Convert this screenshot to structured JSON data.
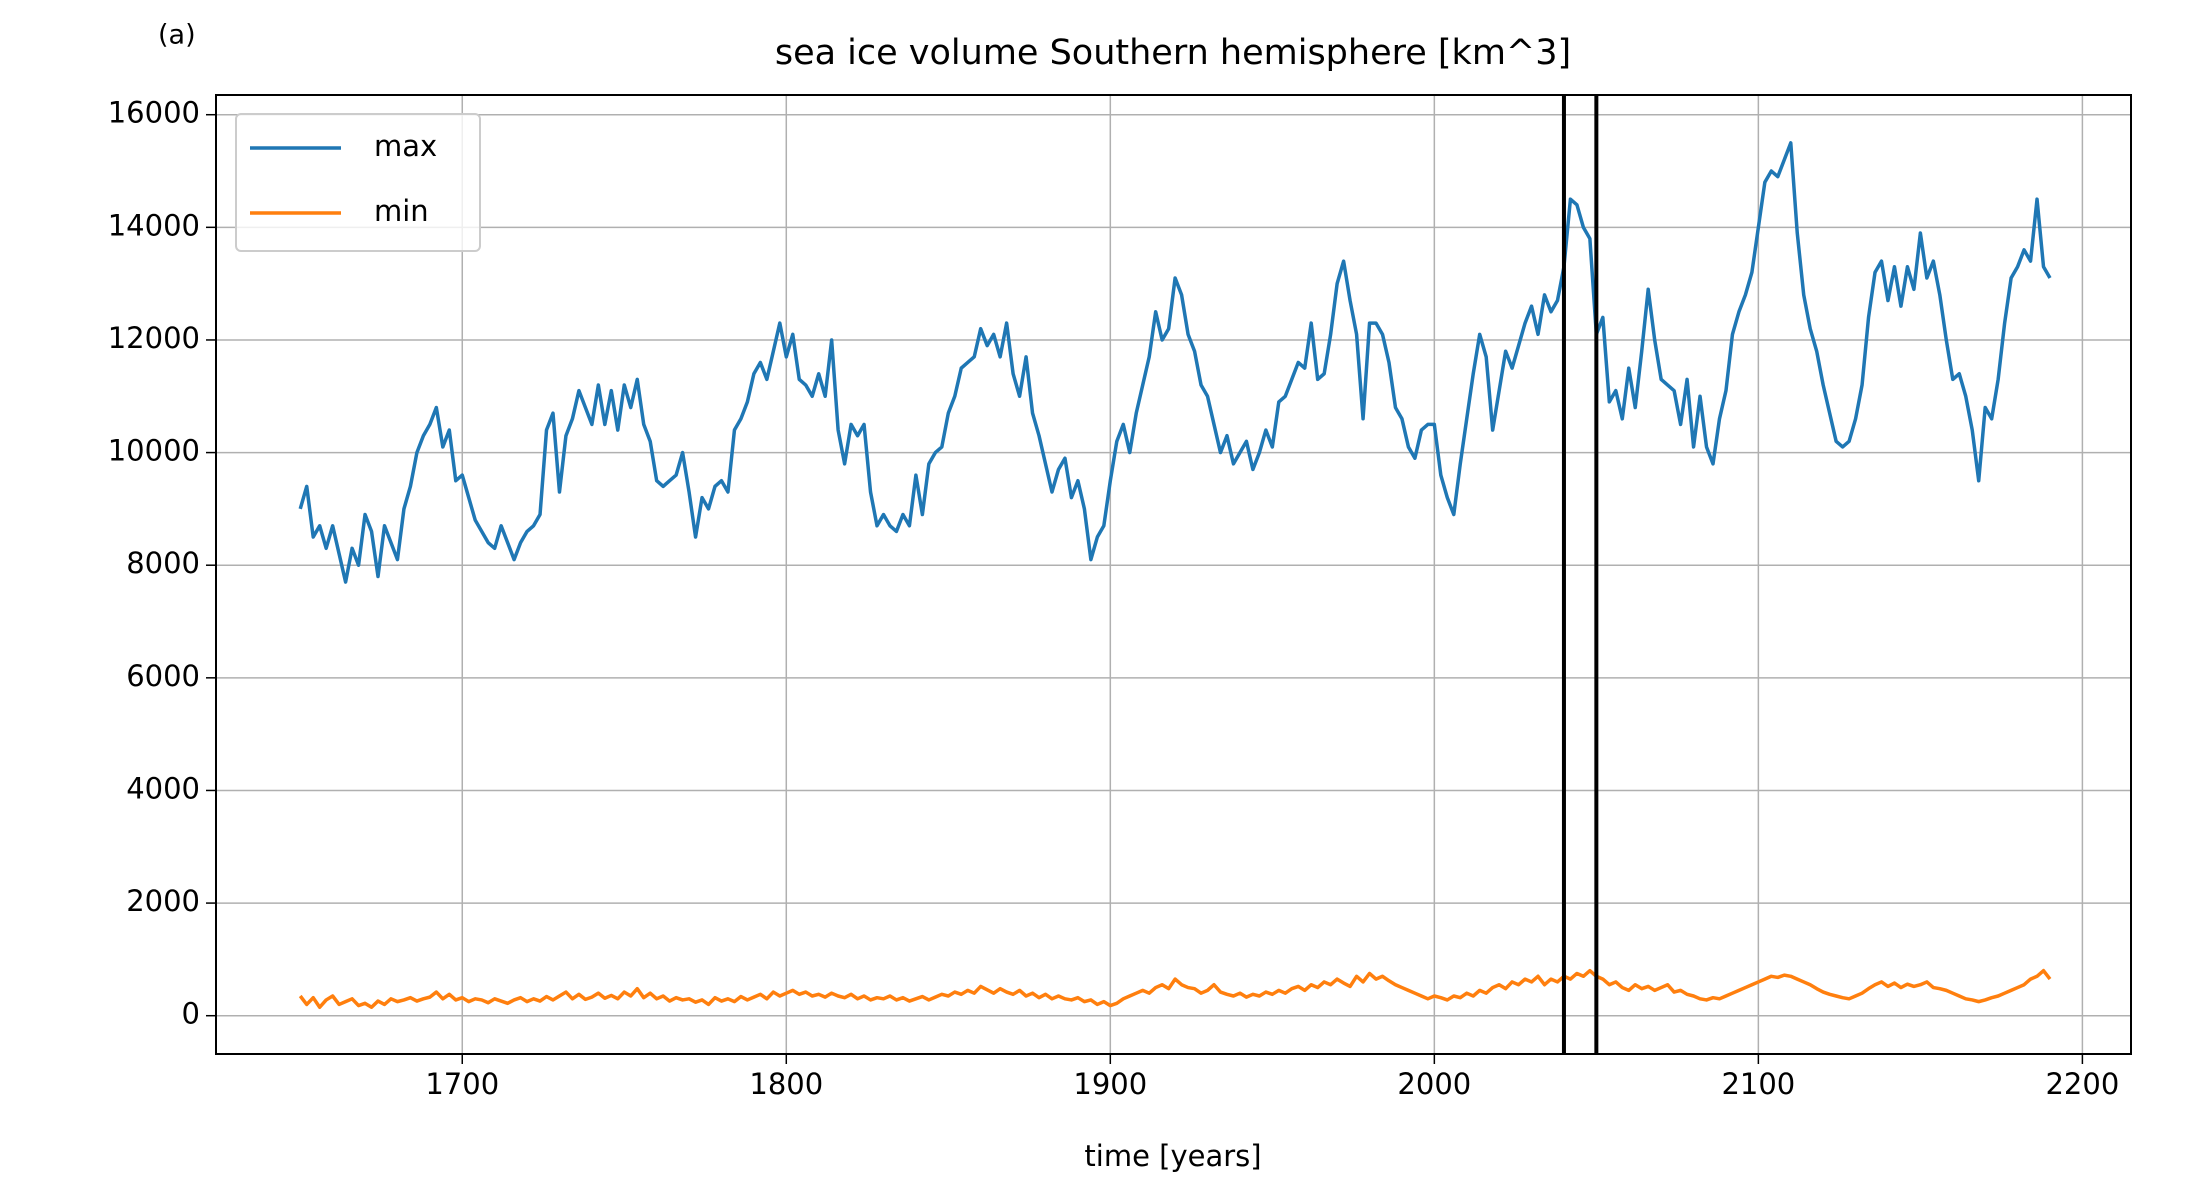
{
  "chart_data": {
    "type": "line",
    "panel_label": "(a)",
    "title": "sea ice volume Southern hemisphere [km^3]",
    "xlabel": "time [years]",
    "xlim": [
      1624,
      2215
    ],
    "ylim": [
      -680,
      16350
    ],
    "xticks": [
      1700,
      1800,
      1900,
      2000,
      2100,
      2200
    ],
    "yticks": [
      0,
      2000,
      4000,
      6000,
      8000,
      10000,
      12000,
      14000,
      16000
    ],
    "grid": true,
    "legend": "upper left",
    "vlines": [
      2040,
      2050
    ],
    "vline_color": "#000000",
    "x": [
      1650,
      1652,
      1654,
      1656,
      1658,
      1660,
      1662,
      1664,
      1666,
      1668,
      1670,
      1672,
      1674,
      1676,
      1678,
      1680,
      1682,
      1684,
      1686,
      1688,
      1690,
      1692,
      1694,
      1696,
      1698,
      1700,
      1702,
      1704,
      1706,
      1708,
      1710,
      1712,
      1714,
      1716,
      1718,
      1720,
      1722,
      1724,
      1726,
      1728,
      1730,
      1732,
      1734,
      1736,
      1738,
      1740,
      1742,
      1744,
      1746,
      1748,
      1750,
      1752,
      1754,
      1756,
      1758,
      1760,
      1762,
      1764,
      1766,
      1768,
      1770,
      1772,
      1774,
      1776,
      1778,
      1780,
      1782,
      1784,
      1786,
      1788,
      1790,
      1792,
      1794,
      1796,
      1798,
      1800,
      1802,
      1804,
      1806,
      1808,
      1810,
      1812,
      1814,
      1816,
      1818,
      1820,
      1822,
      1824,
      1826,
      1828,
      1830,
      1832,
      1834,
      1836,
      1838,
      1840,
      1842,
      1844,
      1846,
      1848,
      1850,
      1852,
      1854,
      1856,
      1858,
      1860,
      1862,
      1864,
      1866,
      1868,
      1870,
      1872,
      1874,
      1876,
      1878,
      1880,
      1882,
      1884,
      1886,
      1888,
      1890,
      1892,
      1894,
      1896,
      1898,
      1900,
      1902,
      1904,
      1906,
      1908,
      1910,
      1912,
      1914,
      1916,
      1918,
      1920,
      1922,
      1924,
      1926,
      1928,
      1930,
      1932,
      1934,
      1936,
      1938,
      1940,
      1942,
      1944,
      1946,
      1948,
      1950,
      1952,
      1954,
      1956,
      1958,
      1960,
      1962,
      1964,
      1966,
      1968,
      1970,
      1972,
      1974,
      1976,
      1978,
      1980,
      1982,
      1984,
      1986,
      1988,
      1990,
      1992,
      1994,
      1996,
      1998,
      2000,
      2002,
      2004,
      2006,
      2008,
      2010,
      2012,
      2014,
      2016,
      2018,
      2020,
      2022,
      2024,
      2026,
      2028,
      2030,
      2032,
      2034,
      2036,
      2038,
      2040,
      2042,
      2044,
      2046,
      2048,
      2050,
      2052,
      2054,
      2056,
      2058,
      2060,
      2062,
      2064,
      2066,
      2068,
      2070,
      2072,
      2074,
      2076,
      2078,
      2080,
      2082,
      2084,
      2086,
      2088,
      2090,
      2092,
      2094,
      2096,
      2098,
      2100,
      2102,
      2104,
      2106,
      2108,
      2110,
      2112,
      2114,
      2116,
      2118,
      2120,
      2122,
      2124,
      2126,
      2128,
      2130,
      2132,
      2134,
      2136,
      2138,
      2140,
      2142,
      2144,
      2146,
      2148,
      2150,
      2152,
      2154,
      2156,
      2158,
      2160,
      2162,
      2164,
      2166,
      2168,
      2170,
      2172,
      2174,
      2176,
      2178,
      2180,
      2182,
      2184,
      2186,
      2188,
      2190
    ],
    "series": [
      {
        "name": "max",
        "color": "#1f77b4",
        "values": [
          9000,
          9400,
          8500,
          8700,
          8300,
          8700,
          8200,
          7700,
          8300,
          8000,
          8900,
          8600,
          7800,
          8700,
          8400,
          8100,
          9000,
          9400,
          10000,
          10300,
          10500,
          10800,
          10100,
          10400,
          9500,
          9600,
          9200,
          8800,
          8600,
          8400,
          8300,
          8700,
          8400,
          8100,
          8400,
          8600,
          8700,
          8900,
          10400,
          10700,
          9300,
          10300,
          10600,
          11100,
          10800,
          10500,
          11200,
          10500,
          11100,
          10400,
          11200,
          10800,
          11300,
          10500,
          10200,
          9500,
          9400,
          9500,
          9600,
          10000,
          9300,
          8500,
          9200,
          9000,
          9400,
          9500,
          9300,
          10400,
          10600,
          10900,
          11400,
          11600,
          11300,
          11800,
          12300,
          11700,
          12100,
          11300,
          11200,
          11000,
          11400,
          11000,
          12000,
          10400,
          9800,
          10500,
          10300,
          10500,
          9300,
          8700,
          8900,
          8700,
          8600,
          8900,
          8700,
          9600,
          8900,
          9800,
          10000,
          10100,
          10700,
          11000,
          11500,
          11600,
          11700,
          12200,
          11900,
          12100,
          11700,
          12300,
          11400,
          11000,
          11700,
          10700,
          10300,
          9800,
          9300,
          9700,
          9900,
          9200,
          9500,
          9000,
          8100,
          8500,
          8700,
          9500,
          10200,
          10500,
          10000,
          10700,
          11200,
          11700,
          12500,
          12000,
          12200,
          13100,
          12800,
          12100,
          11800,
          11200,
          11000,
          10500,
          10000,
          10300,
          9800,
          10000,
          10200,
          9700,
          10000,
          10400,
          10100,
          10900,
          11000,
          11300,
          11600,
          11500,
          12300,
          11300,
          11400,
          12100,
          13000,
          13400,
          12700,
          12100,
          10600,
          12300,
          12300,
          12100,
          11600,
          10800,
          10600,
          10100,
          9900,
          10400,
          10500,
          10500,
          9600,
          9200,
          8900,
          9800,
          10600,
          11400,
          12100,
          11700,
          10400,
          11100,
          11800,
          11500,
          11900,
          12300,
          12600,
          12100,
          12800,
          12500,
          12700,
          13300,
          14500,
          14400,
          14000,
          13800,
          12100,
          12400,
          10900,
          11100,
          10600,
          11500,
          10800,
          11800,
          12900,
          12000,
          11300,
          11200,
          11100,
          10500,
          11300,
          10100,
          11000,
          10100,
          9800,
          10600,
          11100,
          12100,
          12500,
          12800,
          13200,
          14000,
          14800,
          15000,
          14900,
          15200,
          15500,
          13900,
          12800,
          12200,
          11800,
          11200,
          10700,
          10200,
          10100,
          10200,
          10600,
          11200,
          12400,
          13200,
          13400,
          12700,
          13300,
          12600,
          13300,
          12900,
          13900,
          13100,
          13400,
          12800,
          12000,
          11300,
          11400,
          11000,
          10400,
          9500,
          10800,
          10600,
          11300,
          12300,
          13100,
          13300,
          13600,
          13400,
          14500,
          13300,
          13100
        ]
      },
      {
        "name": "min",
        "color": "#ff7f0e",
        "values": [
          350,
          200,
          320,
          150,
          280,
          350,
          200,
          250,
          300,
          180,
          220,
          150,
          260,
          200,
          300,
          250,
          280,
          320,
          260,
          300,
          330,
          420,
          300,
          380,
          280,
          320,
          250,
          300,
          280,
          230,
          300,
          260,
          220,
          280,
          320,
          250,
          300,
          260,
          340,
          280,
          350,
          420,
          300,
          380,
          290,
          330,
          400,
          310,
          360,
          300,
          420,
          350,
          480,
          320,
          400,
          300,
          350,
          260,
          320,
          280,
          300,
          240,
          280,
          200,
          320,
          260,
          300,
          250,
          340,
          280,
          330,
          380,
          300,
          420,
          350,
          400,
          450,
          380,
          420,
          350,
          380,
          330,
          400,
          350,
          320,
          380,
          300,
          350,
          280,
          320,
          300,
          350,
          280,
          320,
          260,
          300,
          340,
          280,
          330,
          380,
          350,
          420,
          380,
          450,
          400,
          520,
          460,
          400,
          480,
          420,
          380,
          450,
          350,
          400,
          320,
          380,
          300,
          350,
          300,
          280,
          320,
          250,
          280,
          200,
          250,
          180,
          220,
          300,
          350,
          400,
          450,
          400,
          500,
          550,
          480,
          650,
          550,
          500,
          480,
          400,
          450,
          550,
          420,
          380,
          350,
          400,
          330,
          380,
          350,
          420,
          380,
          450,
          400,
          480,
          520,
          450,
          550,
          500,
          600,
          550,
          650,
          580,
          520,
          700,
          600,
          750,
          650,
          700,
          620,
          550,
          500,
          450,
          400,
          350,
          300,
          350,
          320,
          280,
          350,
          320,
          400,
          350,
          450,
          400,
          500,
          550,
          480,
          600,
          550,
          650,
          600,
          700,
          550,
          650,
          600,
          700,
          650,
          750,
          700,
          800,
          700,
          650,
          550,
          600,
          500,
          450,
          550,
          480,
          520,
          450,
          500,
          550,
          420,
          450,
          380,
          350,
          300,
          280,
          320,
          300,
          350,
          400,
          450,
          500,
          550,
          600,
          650,
          700,
          680,
          720,
          700,
          650,
          600,
          550,
          480,
          420,
          380,
          350,
          320,
          300,
          350,
          400,
          480,
          550,
          600,
          520,
          580,
          500,
          560,
          520,
          550,
          600,
          500,
          480,
          450,
          400,
          350,
          300,
          280,
          250,
          280,
          320,
          350,
          400,
          450,
          500,
          550,
          650,
          700,
          800,
          650
        ]
      }
    ]
  }
}
